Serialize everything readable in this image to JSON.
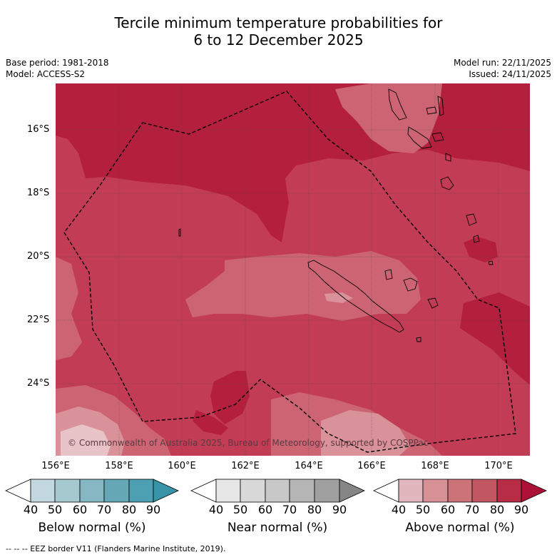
{
  "title": {
    "line1": "Tercile minimum temperature probabilities for",
    "line2": "6 to 12 December 2025"
  },
  "meta": {
    "base_period": "Base period: 1981-2018",
    "model": "Model: ACCESS-S2",
    "model_run": "Model run: 22/11/2025",
    "issued": "Issued: 24/11/2025"
  },
  "map": {
    "lat_labels": [
      "16°S",
      "18°S",
      "20°S",
      "22°S",
      "24°S"
    ],
    "lon_labels": [
      "156°E",
      "158°E",
      "160°E",
      "162°E",
      "164°E",
      "166°E",
      "168°E",
      "170°E"
    ],
    "copyright": "© Commonwealth of Australia 2025, Bureau of Meteorology, supported by COSPPac",
    "colors": {
      "above_80": "#b41f3d",
      "above_70": "#c23c55",
      "above_60": "#cd6474",
      "above_50": "#d99299",
      "above_40": "#e8c3c7",
      "land_outline": "#000000",
      "eez_line": "#000000"
    }
  },
  "colorbars": [
    {
      "label": "Below normal (%)",
      "ticks": [
        "40",
        "50",
        "60",
        "70",
        "80",
        "90"
      ],
      "colors": [
        "#ffffff",
        "#c2d8de",
        "#a5c9cf",
        "#86b8c3",
        "#66a7b5",
        "#4da0b1",
        "#3793a7"
      ]
    },
    {
      "label": "Near normal (%)",
      "ticks": [
        "40",
        "50",
        "60",
        "70",
        "80",
        "90"
      ],
      "colors": [
        "#ffffff",
        "#e7e7e7",
        "#d8d8d8",
        "#c8c8c8",
        "#b5b5b5",
        "#a0a0a0",
        "#858585"
      ]
    },
    {
      "label": "Above normal (%)",
      "ticks": [
        "40",
        "50",
        "60",
        "70",
        "80",
        "90"
      ],
      "colors": [
        "#ffffff",
        "#e1b7bd",
        "#d89097",
        "#cc7279",
        "#c25763",
        "#b82c48",
        "#ab1236"
      ]
    }
  ],
  "footnote": "-- -- -- EEZ border V11 (Flanders Marine Institute, 2019)."
}
